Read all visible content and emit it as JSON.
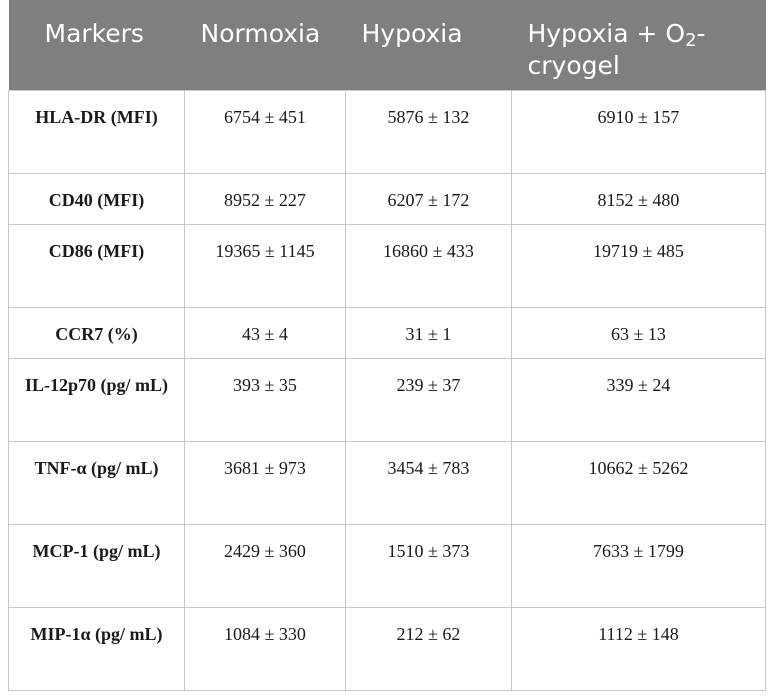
{
  "table": {
    "headers": [
      "Markers",
      "Normoxia",
      "Hypoxia",
      "Hypoxia + O",
      "2",
      "-cryogel"
    ],
    "header_labels": {
      "markers": "Markers",
      "normoxia": "Normoxia",
      "hypoxia": "Hypoxia",
      "hypoxia_o2_prefix": "Hypoxia + O",
      "hypoxia_o2_sub": "2",
      "hypoxia_o2_suffix": "-cryogel"
    },
    "rows": [
      {
        "marker": "HLA-DR (MFI)",
        "normoxia": "6754 ± 451",
        "hypoxia": "5876 ± 132",
        "hypoxia_o2": "6910 ± 157"
      },
      {
        "marker": "CD40 (MFI)",
        "normoxia": "8952 ± 227",
        "hypoxia": "6207 ± 172",
        "hypoxia_o2": "8152 ± 480"
      },
      {
        "marker": "CD86 (MFI)",
        "normoxia": "19365 ± 1145",
        "hypoxia": "16860 ± 433",
        "hypoxia_o2": "19719 ± 485"
      },
      {
        "marker": "CCR7 (%)",
        "normoxia": "43 ± 4",
        "hypoxia": "31 ± 1",
        "hypoxia_o2": "63 ± 13"
      },
      {
        "marker": "IL-12p70 (pg/ mL)",
        "normoxia": "393 ± 35",
        "hypoxia": "239 ± 37",
        "hypoxia_o2": "339 ± 24"
      },
      {
        "marker": "TNF-α (pg/ mL)",
        "normoxia": "3681 ± 973",
        "hypoxia": "3454 ± 783",
        "hypoxia_o2": "10662 ± 5262"
      },
      {
        "marker": "MCP-1 (pg/ mL)",
        "normoxia": "2429 ± 360",
        "hypoxia": "1510 ± 373",
        "hypoxia_o2": "7633 ± 1799"
      },
      {
        "marker": "MIP-1α (pg/ mL)",
        "normoxia": "1084 ± 330",
        "hypoxia": "212 ± 62",
        "hypoxia_o2": "1112 ± 148"
      }
    ]
  }
}
